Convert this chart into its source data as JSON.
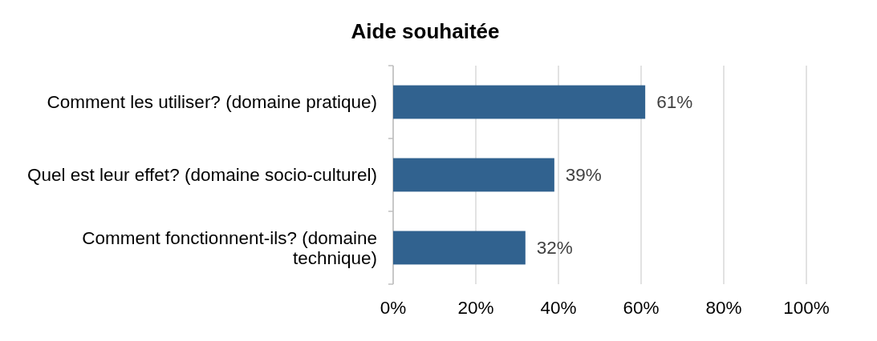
{
  "chart_data": {
    "type": "bar",
    "orientation": "horizontal",
    "title": "Aide souhaitée",
    "categories": [
      "Comment les utiliser? (domaine pratique)",
      "Quel est leur effet? (domaine socio-culturel)",
      "Comment fonctionnent-ils? (domaine technique)"
    ],
    "values": [
      61,
      39,
      32
    ],
    "value_labels": [
      "61%",
      "39%",
      "32%"
    ],
    "color": "#31628f",
    "xlim": [
      0,
      100
    ],
    "xticks": [
      {
        "value": 0,
        "label": "0%"
      },
      {
        "value": 20,
        "label": "20%"
      },
      {
        "value": 40,
        "label": "40%"
      },
      {
        "value": 60,
        "label": "60%"
      },
      {
        "value": 80,
        "label": "80%"
      },
      {
        "value": 100,
        "label": "100%"
      }
    ],
    "grid": "x"
  }
}
